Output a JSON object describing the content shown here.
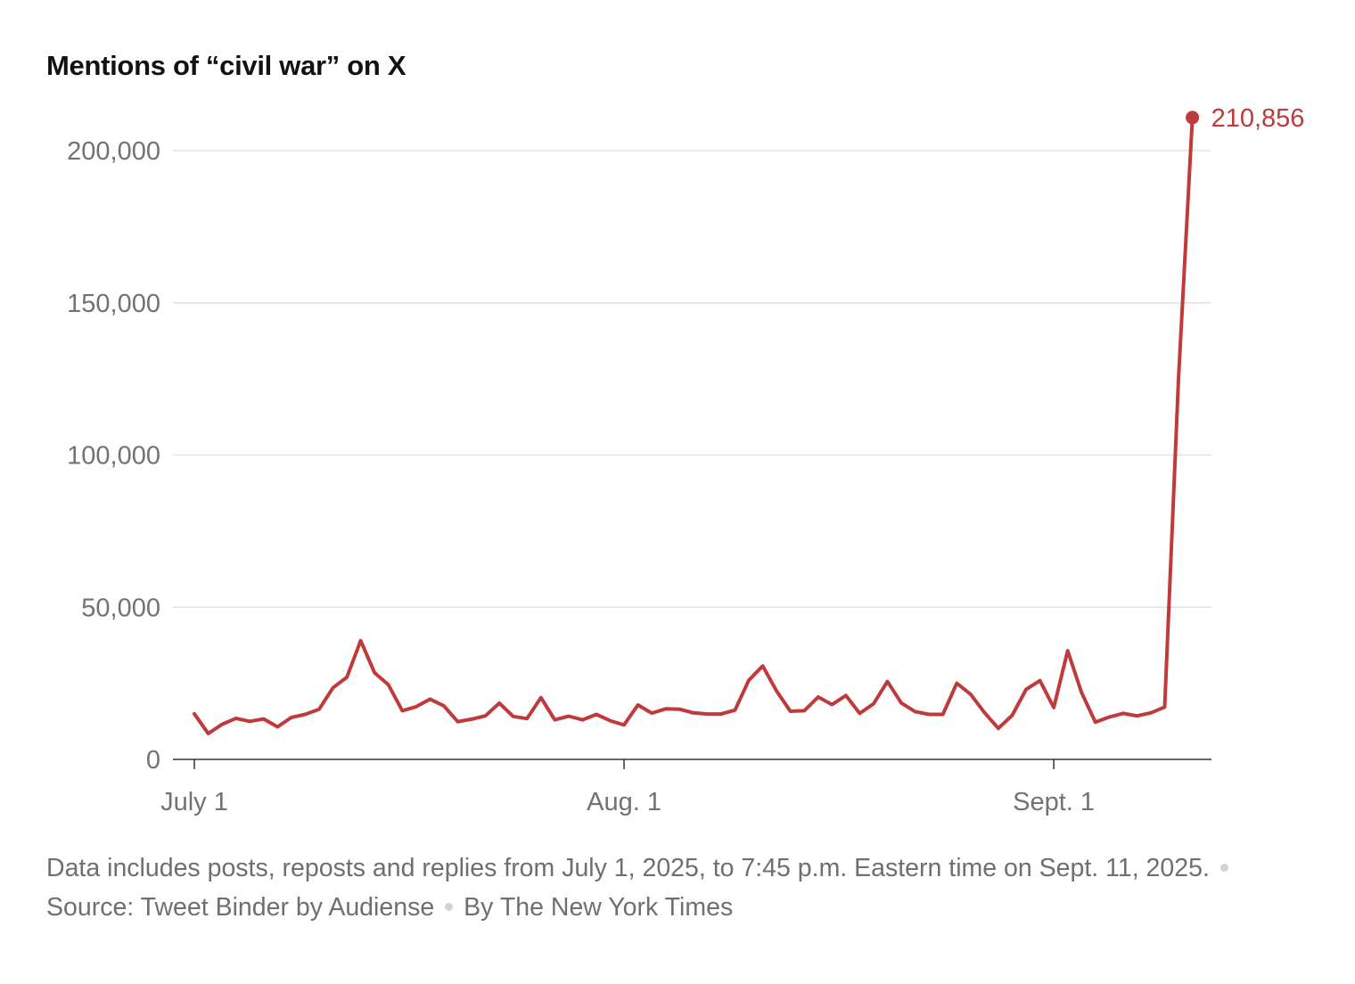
{
  "title": "Mentions of “civil war” on X",
  "chart_data": {
    "type": "line",
    "x_start": "2025-07-01",
    "x_end": "2025-09-11",
    "xticks": [
      "July 1",
      "Aug. 1",
      "Sept. 1"
    ],
    "yticks": [
      "0",
      "50,000",
      "100,000",
      "150,000",
      "200,000"
    ],
    "ylim": [
      0,
      200000
    ],
    "grid": true,
    "series": [
      {
        "color": "#bf3a3a",
        "end_label": "210,856",
        "x": [
          "2025-07-01",
          "2025-07-02",
          "2025-07-03",
          "2025-07-04",
          "2025-07-05",
          "2025-07-06",
          "2025-07-07",
          "2025-07-08",
          "2025-07-09",
          "2025-07-10",
          "2025-07-11",
          "2025-07-12",
          "2025-07-13",
          "2025-07-14",
          "2025-07-15",
          "2025-07-16",
          "2025-07-17",
          "2025-07-18",
          "2025-07-19",
          "2025-07-20",
          "2025-07-21",
          "2025-07-22",
          "2025-07-23",
          "2025-07-24",
          "2025-07-25",
          "2025-07-26",
          "2025-07-27",
          "2025-07-28",
          "2025-07-29",
          "2025-07-30",
          "2025-07-31",
          "2025-08-01",
          "2025-08-02",
          "2025-08-03",
          "2025-08-04",
          "2025-08-05",
          "2025-08-06",
          "2025-08-07",
          "2025-08-08",
          "2025-08-09",
          "2025-08-10",
          "2025-08-11",
          "2025-08-12",
          "2025-08-13",
          "2025-08-14",
          "2025-08-15",
          "2025-08-16",
          "2025-08-17",
          "2025-08-18",
          "2025-08-19",
          "2025-08-20",
          "2025-08-21",
          "2025-08-22",
          "2025-08-23",
          "2025-08-24",
          "2025-08-25",
          "2025-08-26",
          "2025-08-27",
          "2025-08-28",
          "2025-08-29",
          "2025-08-30",
          "2025-08-31",
          "2025-09-01",
          "2025-09-02",
          "2025-09-03",
          "2025-09-04",
          "2025-09-05",
          "2025-09-06",
          "2025-09-07",
          "2025-09-08",
          "2025-09-09",
          "2025-09-10",
          "2025-09-11"
        ],
        "values": [
          15000,
          8500,
          11500,
          13500,
          12500,
          13300,
          10700,
          13800,
          14800,
          16500,
          23500,
          27000,
          39000,
          28500,
          24500,
          16000,
          17300,
          19800,
          17600,
          12400,
          13200,
          14300,
          18500,
          14100,
          13400,
          20300,
          13000,
          14200,
          13000,
          14800,
          12700,
          11300,
          17900,
          15200,
          16600,
          16500,
          15300,
          14900,
          14900,
          16200,
          26000,
          30700,
          22500,
          15800,
          16000,
          20500,
          18000,
          21000,
          15100,
          18300,
          25600,
          18500,
          15700,
          14800,
          14800,
          25000,
          21400,
          15400,
          10200,
          14500,
          23000,
          25900,
          17000,
          35700,
          22000,
          12200,
          13900,
          15100,
          14300,
          15300,
          17200,
          125000,
          210856
        ]
      }
    ]
  },
  "footnote": {
    "text": "Data includes posts, reposts and replies from July 1, 2025, to 7:45 p.m. Eastern time on Sept. 11, 2025.",
    "source": "Source: Tweet Binder by Audiense",
    "credit": "By The New York Times"
  }
}
